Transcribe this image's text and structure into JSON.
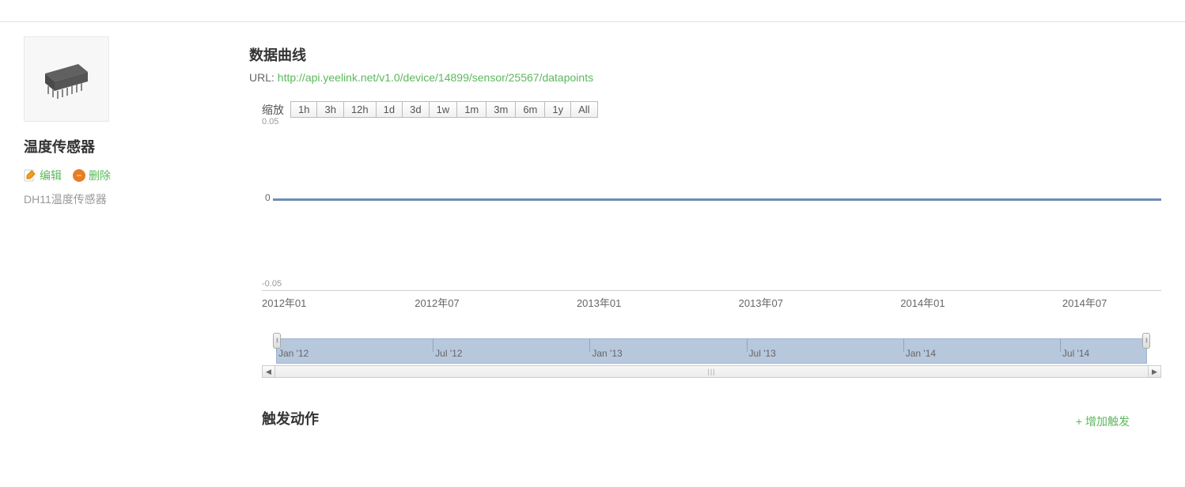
{
  "sidebar": {
    "sensor_name": "温度传感器",
    "edit_label": "编辑",
    "delete_label": "删除",
    "description": "DH11温度传感器"
  },
  "chart_section": {
    "title": "数据曲线",
    "url_label": "URL:",
    "url_value": "http://api.yeelink.net/v1.0/device/14899/sensor/25567/datapoints"
  },
  "zoom": {
    "label": "缩放",
    "below_label": "0.05",
    "buttons": [
      "1h",
      "3h",
      "12h",
      "1d",
      "3d",
      "1w",
      "1m",
      "3m",
      "6m",
      "1y",
      "All"
    ]
  },
  "chart": {
    "type": "line",
    "y_ticks": {
      "top": "0.05",
      "mid": "0",
      "bottom": "-0.05"
    },
    "ylim": [
      -0.05,
      0.05
    ],
    "line_y_value": 0,
    "line_color": "#6d8db3",
    "line_width": 3,
    "background_color": "#ffffff",
    "x_ticks": [
      {
        "label": "2012年01",
        "pos_pct": 0
      },
      {
        "label": "2012年07",
        "pos_pct": 17
      },
      {
        "label": "2013年01",
        "pos_pct": 35
      },
      {
        "label": "2013年07",
        "pos_pct": 53
      },
      {
        "label": "2014年01",
        "pos_pct": 71
      },
      {
        "label": "2014年07",
        "pos_pct": 89
      }
    ]
  },
  "navigator": {
    "selection_color": "#b7c8dd",
    "selection_border": "#9db4cf",
    "ticks": [
      {
        "label": "Jan '12",
        "pos_pct": 0
      },
      {
        "label": "Jul '12",
        "pos_pct": 18
      },
      {
        "label": "Jan '13",
        "pos_pct": 36
      },
      {
        "label": "Jul '13",
        "pos_pct": 54
      },
      {
        "label": "Jan '14",
        "pos_pct": 72
      },
      {
        "label": "Jul '14",
        "pos_pct": 90
      }
    ],
    "scroll_grip": "|||"
  },
  "trigger_section": {
    "title": "触发动作",
    "add_label": "+ 增加触发"
  },
  "colors": {
    "accent": "#5cb85c",
    "text_muted": "#999999",
    "border": "#e0e0e0"
  }
}
